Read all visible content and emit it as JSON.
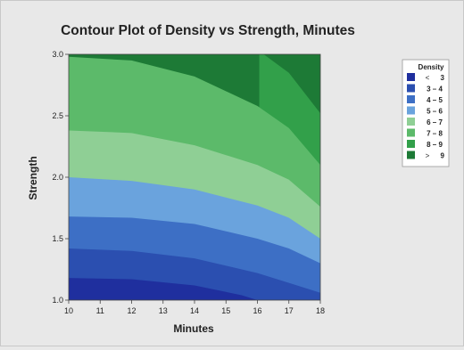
{
  "chart_data": {
    "type": "contour",
    "title": "Contour Plot of Density vs Strength, Minutes",
    "xlabel": "Minutes",
    "ylabel": "Strength",
    "xlim": [
      10,
      18
    ],
    "ylim": [
      1.0,
      3.0
    ],
    "xticks": [
      "10",
      "11",
      "12",
      "13",
      "14",
      "15",
      "16",
      "17",
      "18"
    ],
    "yticks": [
      "1.0",
      "1.5",
      "2.0",
      "2.5",
      "3.0"
    ],
    "legend": {
      "title": "Density",
      "placement": "right",
      "entries": [
        {
          "label": "<",
          "value": "3",
          "color": "#1f2f9e"
        },
        {
          "label": "3 – 4",
          "value": "",
          "color": "#2b4fb0"
        },
        {
          "label": "4 – 5",
          "value": "",
          "color": "#3d6fc5"
        },
        {
          "label": "5 – 6",
          "value": "",
          "color": "#6aa3dd"
        },
        {
          "label": "6 – 7",
          "value": "",
          "color": "#8fcf95"
        },
        {
          "label": "7 – 8",
          "value": "",
          "color": "#5cba6a"
        },
        {
          "label": "8 – 9",
          "value": "",
          "color": "#32a04a"
        },
        {
          "label": ">",
          "value": "9",
          "color": "#1d7a36"
        }
      ]
    },
    "levels": [
      3,
      4,
      5,
      6,
      7,
      8,
      9
    ],
    "contour_lines": [
      {
        "level": 3,
        "points": [
          [
            10,
            1.18
          ],
          [
            12,
            1.17
          ],
          [
            14,
            1.12
          ],
          [
            15.5,
            1.04
          ],
          [
            16,
            1.0
          ]
        ]
      },
      {
        "level": 4,
        "points": [
          [
            10,
            1.42
          ],
          [
            12,
            1.4
          ],
          [
            14,
            1.34
          ],
          [
            16,
            1.22
          ],
          [
            17,
            1.14
          ],
          [
            18,
            1.06
          ]
        ]
      },
      {
        "level": 5,
        "points": [
          [
            10,
            1.68
          ],
          [
            12,
            1.67
          ],
          [
            14,
            1.62
          ],
          [
            16,
            1.5
          ],
          [
            17,
            1.42
          ],
          [
            18,
            1.3
          ]
        ]
      },
      {
        "level": 6,
        "points": [
          [
            10,
            2.0
          ],
          [
            12,
            1.97
          ],
          [
            14,
            1.9
          ],
          [
            16,
            1.77
          ],
          [
            17,
            1.67
          ],
          [
            18,
            1.5
          ]
        ]
      },
      {
        "level": 7,
        "points": [
          [
            10,
            2.38
          ],
          [
            12,
            2.36
          ],
          [
            14,
            2.26
          ],
          [
            16,
            2.1
          ],
          [
            17,
            1.98
          ],
          [
            18,
            1.76
          ]
        ]
      },
      {
        "level": 8,
        "points": [
          [
            10,
            2.98
          ],
          [
            12,
            2.95
          ],
          [
            14,
            2.82
          ],
          [
            16,
            2.58
          ],
          [
            17,
            2.4
          ],
          [
            18,
            2.1
          ]
        ]
      },
      {
        "level": 9,
        "points": [
          [
            16.2,
            3.0
          ],
          [
            17,
            2.85
          ],
          [
            18,
            2.52
          ]
        ]
      }
    ]
  }
}
